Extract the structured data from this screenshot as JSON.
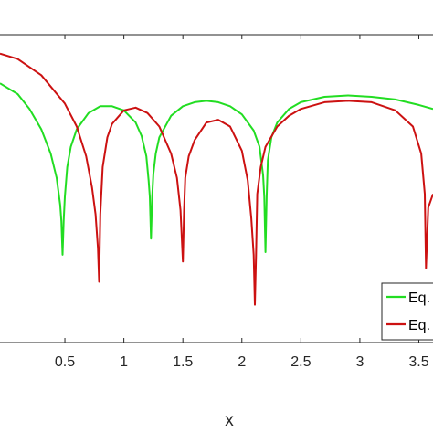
{
  "chart_data": {
    "type": "line",
    "title": "",
    "xlabel": "x",
    "ylabel": "",
    "xlim": [
      -0.05,
      3.62
    ],
    "ylim": [
      -1.9,
      0.38
    ],
    "grid": false,
    "legend_position": "bottom-right",
    "x_ticks": [
      0.5,
      1,
      1.5,
      2,
      2.5,
      3,
      3.5
    ],
    "x_tick_labels": [
      "0.5",
      "1",
      "1.5",
      "2",
      "2.5",
      "3",
      "3.5"
    ],
    "series": [
      {
        "name": "Eq.",
        "color": "#22dd22",
        "x": [
          -0.05,
          0.1,
          0.2,
          0.3,
          0.38,
          0.43,
          0.46,
          0.47,
          0.48,
          0.49,
          0.5,
          0.52,
          0.55,
          0.6,
          0.7,
          0.8,
          0.9,
          1.0,
          1.1,
          1.15,
          1.19,
          1.21,
          1.22,
          1.23,
          1.24,
          1.25,
          1.27,
          1.3,
          1.4,
          1.5,
          1.6,
          1.7,
          1.8,
          1.9,
          2.0,
          2.1,
          2.15,
          2.18,
          2.19,
          2.2,
          2.21,
          2.22,
          2.25,
          2.3,
          2.4,
          2.5,
          2.7,
          2.9,
          3.1,
          3.3,
          3.5,
          3.62
        ],
        "y": [
          0.02,
          -0.06,
          -0.17,
          -0.32,
          -0.5,
          -0.68,
          -0.88,
          -1.0,
          -1.25,
          -1.0,
          -0.82,
          -0.6,
          -0.45,
          -0.32,
          -0.2,
          -0.15,
          -0.15,
          -0.18,
          -0.27,
          -0.37,
          -0.52,
          -0.7,
          -0.82,
          -1.13,
          -0.82,
          -0.65,
          -0.5,
          -0.38,
          -0.22,
          -0.15,
          -0.12,
          -0.11,
          -0.12,
          -0.15,
          -0.21,
          -0.33,
          -0.45,
          -0.66,
          -0.82,
          -1.23,
          -0.82,
          -0.55,
          -0.38,
          -0.27,
          -0.17,
          -0.12,
          -0.08,
          -0.07,
          -0.08,
          -0.1,
          -0.14,
          -0.17
        ]
      },
      {
        "name": "Eq.",
        "color": "#cc1111",
        "x": [
          -0.05,
          0.1,
          0.3,
          0.5,
          0.6,
          0.68,
          0.73,
          0.76,
          0.78,
          0.79,
          0.8,
          0.82,
          0.86,
          0.9,
          1.0,
          1.1,
          1.2,
          1.3,
          1.4,
          1.45,
          1.48,
          1.5,
          1.51,
          1.52,
          1.55,
          1.6,
          1.7,
          1.8,
          1.9,
          2.0,
          2.05,
          2.08,
          2.1,
          2.11,
          2.12,
          2.13,
          2.16,
          2.2,
          2.3,
          2.4,
          2.5,
          2.7,
          2.9,
          3.1,
          3.3,
          3.45,
          3.52,
          3.55,
          3.56,
          3.58,
          3.62
        ],
        "y": [
          0.24,
          0.2,
          0.08,
          -0.13,
          -0.3,
          -0.52,
          -0.75,
          -0.95,
          -1.2,
          -1.45,
          -0.95,
          -0.6,
          -0.38,
          -0.28,
          -0.18,
          -0.16,
          -0.2,
          -0.3,
          -0.5,
          -0.68,
          -0.92,
          -1.3,
          -0.92,
          -0.68,
          -0.52,
          -0.4,
          -0.27,
          -0.25,
          -0.3,
          -0.48,
          -0.7,
          -0.98,
          -1.25,
          -1.62,
          -1.25,
          -0.8,
          -0.6,
          -0.45,
          -0.3,
          -0.22,
          -0.17,
          -0.12,
          -0.11,
          -0.12,
          -0.18,
          -0.3,
          -0.5,
          -0.8,
          -1.35,
          -0.9,
          -0.8
        ]
      }
    ]
  }
}
